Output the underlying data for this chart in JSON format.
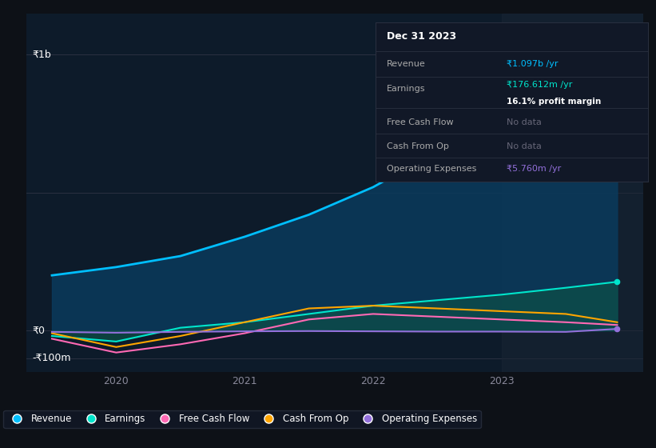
{
  "background_color": "#0d1117",
  "plot_bg_color": "#0d1b2a",
  "ylabel_1b": "₹1b",
  "ylabel_0": "₹0",
  "ylabel_neg100m": "-₹100m",
  "xlabel_years": [
    "2020",
    "2021",
    "2022",
    "2023"
  ],
  "x_positions": [
    2019.5,
    2020.0,
    2020.5,
    2021.0,
    2021.5,
    2022.0,
    2022.5,
    2023.0,
    2023.5,
    2023.9
  ],
  "revenue": [
    200,
    230,
    270,
    340,
    420,
    520,
    650,
    780,
    950,
    1097
  ],
  "earnings": [
    -20,
    -40,
    10,
    30,
    60,
    90,
    110,
    130,
    155,
    176.612
  ],
  "free_cash_flow": [
    -30,
    -80,
    -50,
    -10,
    40,
    60,
    50,
    40,
    30,
    20
  ],
  "cash_from_op": [
    -10,
    -60,
    -20,
    30,
    80,
    90,
    80,
    70,
    60,
    30
  ],
  "operating_expenses": [
    -5,
    -8,
    -5,
    -3,
    -2,
    -3,
    -4,
    -4,
    -5,
    5.76
  ],
  "revenue_color": "#00bfff",
  "earnings_color": "#00e5cc",
  "free_cash_flow_color": "#ff69b4",
  "cash_from_op_color": "#ffa500",
  "operating_expenses_color": "#9370db",
  "revenue_fill_color": "#0a3a5c",
  "earnings_fill_color": "#0d5048",
  "info_box": {
    "date": "Dec 31 2023",
    "revenue_val": "₹1.097b /yr",
    "earnings_val": "₹176.612m /yr",
    "profit_margin": "16.1% profit margin",
    "free_cash_flow": "No data",
    "cash_from_op": "No data",
    "operating_expenses": "₹5.760m /yr"
  },
  "legend_items": [
    {
      "label": "Revenue",
      "color": "#00bfff"
    },
    {
      "label": "Earnings",
      "color": "#00e5cc"
    },
    {
      "label": "Free Cash Flow",
      "color": "#ff69b4"
    },
    {
      "label": "Cash From Op",
      "color": "#ffa500"
    },
    {
      "label": "Operating Expenses",
      "color": "#9370db"
    }
  ],
  "ylim": [
    -150,
    1150
  ],
  "xlim": [
    2019.3,
    2024.1
  ],
  "y_zero": 0,
  "y_1b": 1000,
  "y_neg100m": -100
}
